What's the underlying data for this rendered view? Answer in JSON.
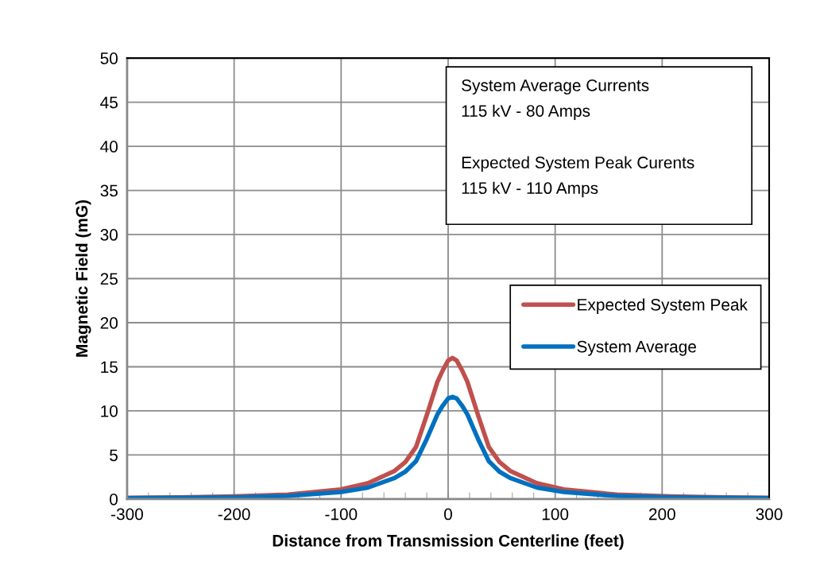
{
  "chart_data": {
    "type": "line",
    "xlabel": "Distance from Transmission Centerline (feet)",
    "ylabel": "Magnetic Field (mG)",
    "xlim": [
      -300,
      300
    ],
    "xticks": [
      -300,
      -200,
      -100,
      0,
      100,
      200,
      300
    ],
    "ylim": [
      0,
      50
    ],
    "yticks": [
      0,
      5,
      10,
      15,
      20,
      25,
      30,
      35,
      40,
      45,
      50
    ],
    "grid": true,
    "legend": "right",
    "marker": "none",
    "line_style": "solid",
    "annotations": [
      "System Average Currents",
      "115 kV - 80 Amps",
      "Expected System Peak Curents",
      "115 kV - 110 Amps"
    ],
    "x": [
      -300,
      -250,
      -200,
      -150,
      -100,
      -75,
      -50,
      -40,
      -30,
      -20,
      -10,
      -5,
      0,
      4,
      8,
      13,
      18,
      28,
      38,
      48,
      58,
      83,
      108,
      158,
      208,
      258,
      300
    ],
    "series": [
      {
        "name": "Expected System Peak",
        "color": "#c0504d",
        "values": [
          0.15,
          0.2,
          0.3,
          0.5,
          1.1,
          1.8,
          3.2,
          4.2,
          5.9,
          9.5,
          13.3,
          14.6,
          15.7,
          16,
          15.7,
          14.6,
          13.3,
          9.5,
          5.9,
          4.2,
          3.2,
          1.8,
          1.1,
          0.5,
          0.3,
          0.2,
          0.15
        ]
      },
      {
        "name": "System Average",
        "color": "#0070c0",
        "values": [
          0.1,
          0.15,
          0.2,
          0.35,
          0.8,
          1.3,
          2.4,
          3.1,
          4.3,
          6.8,
          9.6,
          10.6,
          11.4,
          11.6,
          11.4,
          10.6,
          9.6,
          6.8,
          4.3,
          3.1,
          2.4,
          1.3,
          0.8,
          0.35,
          0.2,
          0.15,
          0.1
        ]
      }
    ]
  }
}
